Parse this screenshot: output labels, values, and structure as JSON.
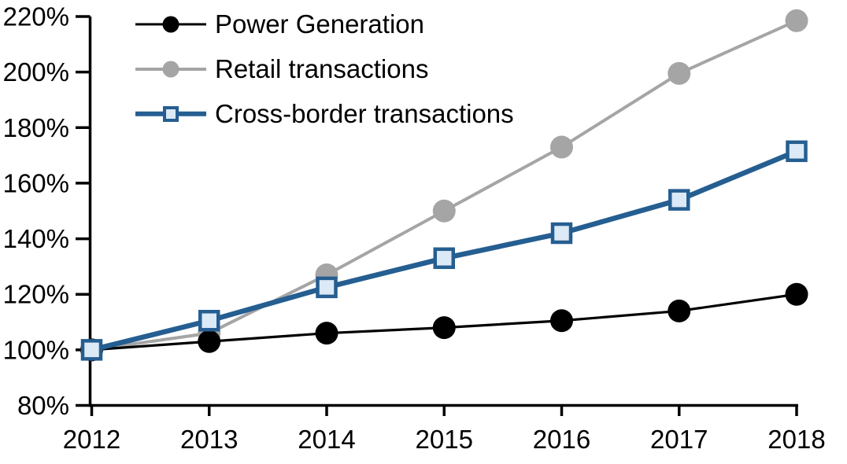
{
  "chart_data": {
    "type": "line",
    "title": "",
    "xlabel": "",
    "ylabel": "",
    "x_labels": [
      "2012",
      "2013",
      "2014",
      "2015",
      "2016",
      "2017",
      "2018"
    ],
    "y_tick_labels": [
      "80%",
      "100%",
      "120%",
      "140%",
      "160%",
      "180%",
      "200%",
      "220%"
    ],
    "ylim": [
      80,
      220
    ],
    "y_tick_step": 20,
    "grid": false,
    "legend_position": "top-left-inside",
    "background_color": "#FFFFFF",
    "axis_color": "#000000",
    "series": [
      {
        "name": "Power Generation",
        "color": "#000000",
        "marker": "circle",
        "marker_fill": "#000000",
        "values": [
          100,
          103,
          106,
          108,
          110.5,
          114,
          120
        ]
      },
      {
        "name": "Retail transactions",
        "color": "#A5A5A5",
        "marker": "circle",
        "marker_fill": "#A5A5A5",
        "values": [
          100,
          106,
          127,
          150,
          173,
          199.5,
          218.5
        ]
      },
      {
        "name": "Cross-border transactions",
        "color": "#255E91",
        "marker": "square",
        "marker_fill": "#DCE9F6",
        "values": [
          100,
          110.5,
          122.5,
          133,
          142,
          154,
          171.5
        ]
      }
    ]
  }
}
